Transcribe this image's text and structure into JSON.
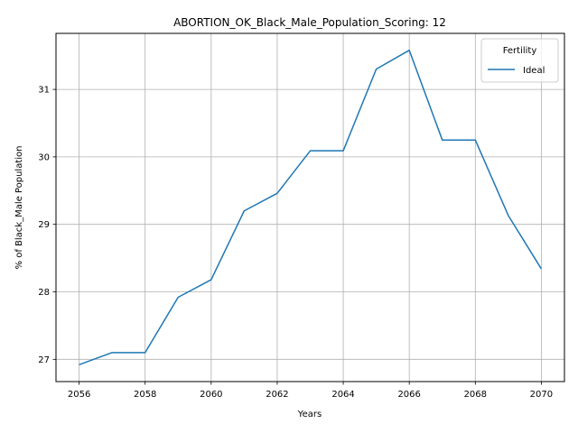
{
  "chart_data": {
    "type": "line",
    "title": "ABORTION_OK_Black_Male_Population_Scoring: 12",
    "xlabel": "Years",
    "ylabel": "% of Black_Male Population",
    "x": [
      2056,
      2057,
      2058,
      2059,
      2060,
      2061,
      2062,
      2063,
      2064,
      2065,
      2066,
      2067,
      2068,
      2069,
      2070
    ],
    "series": [
      {
        "name": "Ideal",
        "color": "#1f77b4",
        "values": [
          26.92,
          27.1,
          27.1,
          27.92,
          28.18,
          29.2,
          29.46,
          30.09,
          30.09,
          31.3,
          31.58,
          30.25,
          30.25,
          29.13,
          28.34
        ]
      }
    ],
    "xlim": [
      2055.3,
      2070.7
    ],
    "ylim": [
      26.67,
      31.83
    ],
    "xticks": [
      2056,
      2058,
      2060,
      2062,
      2064,
      2066,
      2068,
      2070
    ],
    "yticks": [
      27,
      28,
      29,
      30,
      31
    ],
    "grid": true,
    "legend": {
      "title": "Fertility",
      "placement": "top-right"
    }
  }
}
